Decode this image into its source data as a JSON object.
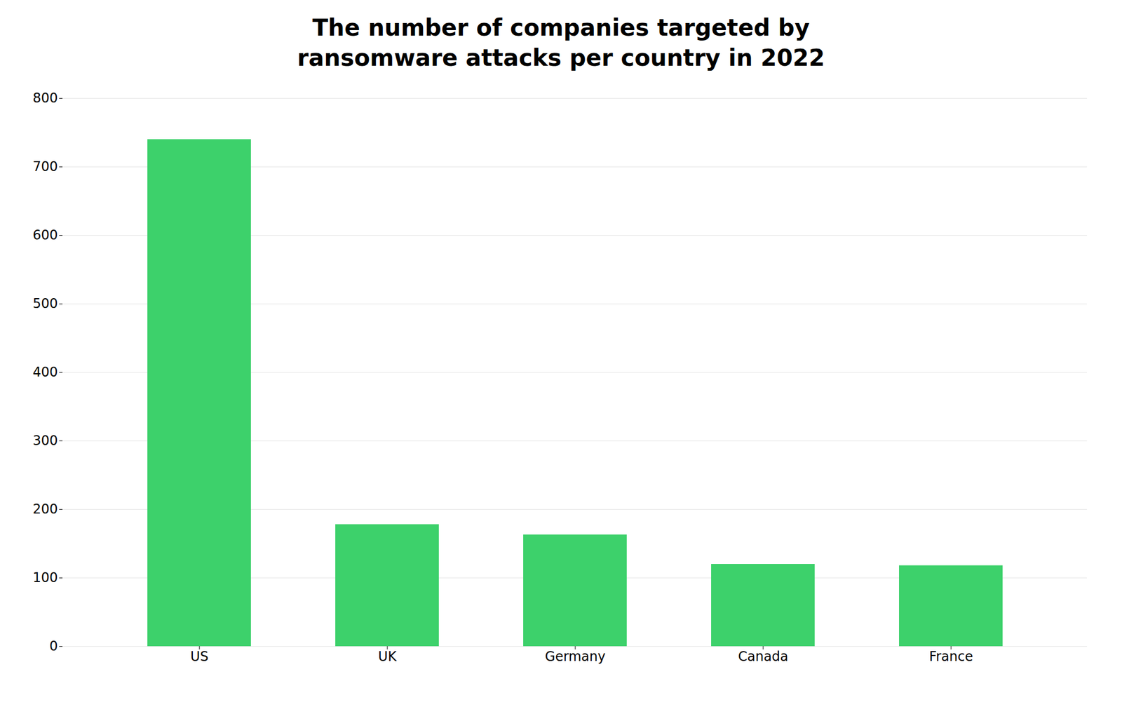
{
  "chart_data": {
    "type": "bar",
    "title": "The number of companies targeted by\nransomware attacks per country in 2022",
    "categories": [
      "US",
      "UK",
      "Germany",
      "Canada",
      "France"
    ],
    "values": [
      740,
      178,
      163,
      120,
      118
    ],
    "color": "#3dd16b",
    "ylim": [
      0,
      800
    ],
    "yticks": [
      0,
      100,
      200,
      300,
      400,
      500,
      600,
      700,
      800
    ],
    "grid": true
  }
}
